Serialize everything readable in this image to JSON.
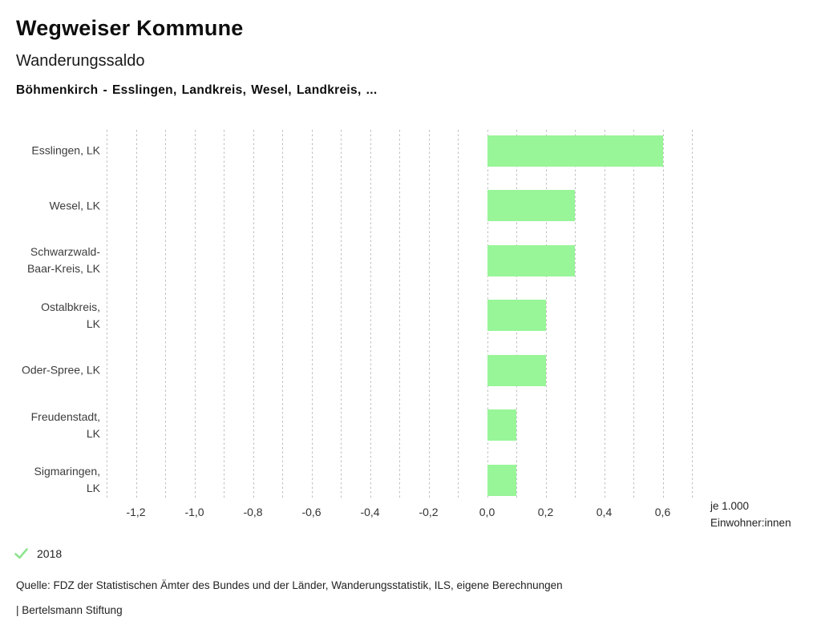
{
  "header": {
    "app_title": "Wegweiser Kommune",
    "chart_title": "Wanderungssaldo",
    "chart_subtitle": "Böhmenkirch - Esslingen, Landkreis, Wesel, Landkreis, ..."
  },
  "chart_data": {
    "type": "bar",
    "orientation": "horizontal",
    "title": "Wanderungssaldo",
    "categories": [
      "Esslingen, LK",
      "Wesel, LK",
      "Schwarzwald-Baar-Kreis, LK",
      "Ostalbkreis, LK",
      "Oder-Spree, LK",
      "Freudenstadt, LK",
      "Sigmaringen, LK"
    ],
    "category_lines": [
      [
        "Esslingen, LK"
      ],
      [
        "Wesel, LK"
      ],
      [
        "Schwarzwald-",
        "Baar-Kreis, LK"
      ],
      [
        "Ostalbkreis,",
        "LK"
      ],
      [
        "Oder-Spree, LK"
      ],
      [
        "Freudenstadt,",
        "LK"
      ],
      [
        "Sigmaringen,",
        "LK"
      ]
    ],
    "values": [
      0.6,
      0.3,
      0.3,
      0.2,
      0.2,
      0.1,
      0.1
    ],
    "xlim": [
      -1.3,
      0.7
    ],
    "gridline_step": 0.1,
    "grid": true,
    "x_ticks": [
      -1.2,
      -1.0,
      -0.8,
      -0.6,
      -0.4,
      -0.2,
      0.0,
      0.2,
      0.4,
      0.6
    ],
    "x_tick_labels": [
      "-1,2",
      "-1,0",
      "-0,8",
      "-0,6",
      "-0,4",
      "-0,2",
      "0,0",
      "0,2",
      "0,4",
      "0,6"
    ],
    "xlabel_lines": [
      "je 1.000",
      "Einwohner:innen"
    ],
    "bar_color": "#98f598",
    "gridline_color": "#bdbdbd",
    "legend_position": "bottom-left"
  },
  "legend": {
    "year": "2018",
    "check_color": "#8fe48f"
  },
  "footer": {
    "source": "Quelle: FDZ der Statistischen Ämter des Bundes und der Länder, Wanderungsstatistik, ILS, eigene Berechnungen",
    "attribution": "| Bertelsmann Stiftung"
  }
}
